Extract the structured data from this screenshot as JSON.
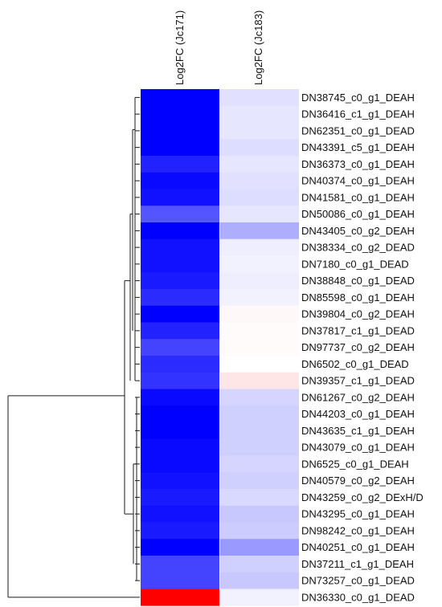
{
  "chart_data": {
    "type": "heatmap",
    "columns": [
      "Log2FC (Jc171)",
      "Log2FC (Jc183)"
    ],
    "rows": [
      {
        "label": "DN38745_c0_g1_DEAH",
        "values": [
          -3.0,
          -0.35
        ]
      },
      {
        "label": "DN36416_c1_g1_DEAH",
        "values": [
          -3.0,
          -0.3
        ]
      },
      {
        "label": "DN62351_c0_g1_DEAD",
        "values": [
          -3.0,
          -0.3
        ]
      },
      {
        "label": "DN43391_c5_g1_DEAH",
        "values": [
          -3.0,
          -0.4
        ]
      },
      {
        "label": "DN36373_c0_g1_DEAH",
        "values": [
          -2.6,
          -0.3
        ]
      },
      {
        "label": "DN40374_c0_g1_DEAH",
        "values": [
          -2.9,
          -0.35
        ]
      },
      {
        "label": "DN41581_c0_g1_DEAH",
        "values": [
          -2.8,
          -0.4
        ]
      },
      {
        "label": "DN50086_c0_g1_DEAH",
        "values": [
          -2.0,
          -0.3
        ]
      },
      {
        "label": "DN43405_c0_g2_DEAH",
        "values": [
          -3.0,
          -0.95
        ]
      },
      {
        "label": "DN38334_c0_g2_DEAD",
        "values": [
          -2.8,
          -0.2
        ]
      },
      {
        "label": "DN7180_c0_g1_DEAD",
        "values": [
          -2.8,
          -0.15
        ]
      },
      {
        "label": "DN38848_c0_g1_DEAD",
        "values": [
          -2.7,
          -0.2
        ]
      },
      {
        "label": "DN85598_c0_g1_DEAH",
        "values": [
          -2.5,
          -0.15
        ]
      },
      {
        "label": "DN39804_c0_g2_DEAH",
        "values": [
          -3.0,
          0.08
        ]
      },
      {
        "label": "DN37817_c1_g1_DEAD",
        "values": [
          -2.6,
          0.05
        ]
      },
      {
        "label": "DN97737_c0_g2_DEAH",
        "values": [
          -2.2,
          0.05
        ]
      },
      {
        "label": "DN6502_c0_g1_DEAD",
        "values": [
          -2.5,
          0.0
        ]
      },
      {
        "label": "DN39357_c1_g1_DEAD",
        "values": [
          -2.4,
          0.3
        ]
      },
      {
        "label": "DN61267_c0_g2_DEAH",
        "values": [
          -2.9,
          -0.5
        ]
      },
      {
        "label": "DN44203_c0_g1_DEAH",
        "values": [
          -3.0,
          -0.55
        ]
      },
      {
        "label": "DN43635_c1_g1_DEAH",
        "values": [
          -3.0,
          -0.55
        ]
      },
      {
        "label": "DN43079_c0_g1_DEAH",
        "values": [
          -2.9,
          -0.55
        ]
      },
      {
        "label": "DN6525_c0_g1_DEAH",
        "values": [
          -2.9,
          -0.5
        ]
      },
      {
        "label": "DN40579_c0_g2_DEAH",
        "values": [
          -2.8,
          -0.55
        ]
      },
      {
        "label": "DN43259_c0_g2_DExH/D",
        "values": [
          -2.7,
          -0.45
        ]
      },
      {
        "label": "DN43295_c0_g1_DEAH",
        "values": [
          -2.8,
          -0.65
        ]
      },
      {
        "label": "DN98242_c0_g1_DEAH",
        "values": [
          -2.7,
          -0.6
        ]
      },
      {
        "label": "DN40251_c0_g1_DEAH",
        "values": [
          -3.0,
          -1.2
        ]
      },
      {
        "label": "DN37211_c1_g1_DEAH",
        "values": [
          -2.2,
          -0.55
        ]
      },
      {
        "label": "DN73257_c0_g1_DEAD",
        "values": [
          -2.2,
          -0.65
        ]
      },
      {
        "label": "DN36330_c0_g1_DEAD",
        "values": [
          3.0,
          -0.15
        ]
      }
    ],
    "color_scale": {
      "min": -3.0,
      "mid": 0.0,
      "max": 3.0,
      "low_color": "#0000ff",
      "mid_color": "#ffffff",
      "high_color": "#ff0000"
    },
    "dendrogram": "row clustering tree on left"
  }
}
